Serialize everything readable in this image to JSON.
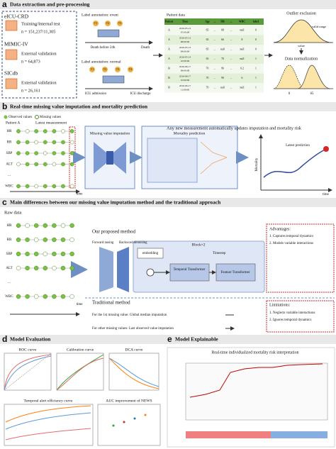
{
  "panel_a": {
    "letter": "a",
    "title": "Data extraction and pre-processing",
    "datasets": [
      {
        "name": "eICU-CRD",
        "role": "Training/Internal test",
        "n": "n = 151,237/11,305"
      },
      {
        "name": "MIMIC-IV",
        "role": "External validation",
        "n": "n = 64,873"
      },
      {
        "name": "SICdb",
        "role": "External validation",
        "n": "n = 26,161"
      }
    ],
    "event": {
      "label": "Label annotation: event",
      "times": [
        "T1",
        "T2",
        "T3"
      ],
      "start": "Death before 24h",
      "end": "Death"
    },
    "normal": {
      "label": "Label annotation: normal",
      "times": [
        "T1",
        "T2",
        "T3",
        "T4"
      ],
      "start": "ICU admission",
      "end": "ICU discharge"
    },
    "table": {
      "title": "Patient data",
      "headers": [
        "Patient",
        "Time",
        "Age",
        "...",
        "DB",
        "...",
        "WBC",
        "label"
      ],
      "rows": [
        [
          "A",
          "2016-05-13",
          "07:00:00",
          "65",
          "...",
          "68",
          "...",
          "null",
          "0"
        ],
        [
          "A",
          "2016-05-13",
          "08:00:00",
          "65",
          "...",
          "66",
          "...",
          "8",
          "0"
        ],
        [
          "A",
          "2016-05-13",
          "09:00:00",
          "65",
          "...",
          "null",
          "...",
          "null",
          "0"
        ],
        [
          "A",
          "2016-05-14",
          "10:00:00",
          "65",
          "...",
          "70",
          "...",
          "null",
          "1"
        ],
        [
          "B",
          "2016-06-17",
          "09:00:00",
          "70",
          "...",
          "96",
          "...",
          "6.2",
          "1"
        ],
        [
          "B",
          "2016-06-17",
          "10:00:00",
          "70",
          "...",
          "90",
          "...",
          "6",
          "1"
        ],
        [
          "B",
          "2016-06-17",
          "11:00:00",
          "70",
          "...",
          "null",
          "...",
          "null",
          "1"
        ]
      ]
    },
    "outlier": {
      "title": "Outlier exclusion",
      "range": "valid range",
      "axis": "value"
    },
    "normalization": {
      "title": "Data normalization",
      "ticks": [
        "0",
        "65"
      ]
    }
  },
  "panel_b": {
    "letter": "b",
    "title": "Real-time missing value imputation and mortality prediction",
    "legend": [
      "Observed values",
      "Missing values"
    ],
    "patient": "Patient  A",
    "latest": "Latest measurement",
    "variables": [
      "HR",
      "RR",
      "SBP",
      "ALT",
      "...",
      "WBC"
    ],
    "time": "time",
    "note": "Any new measurement automatically updates imputation and mortality risk",
    "imputation": "Missing value imputation",
    "prediction": "Mortality prediction",
    "plot": {
      "point": "Latest prediction",
      "y_label": "Mortality",
      "x_label": "time"
    }
  },
  "panel_c": {
    "letter": "c",
    "title": "Main differences between our missing value imputation method and the traditional approach",
    "raw": "Raw data",
    "variables": [
      "HR",
      "RR",
      "SBP",
      "ALT",
      "...",
      "WBC"
    ],
    "time": "time",
    "proposed": {
      "title": "Our proposed method",
      "forward": "Forward nosing",
      "backward": "Backword denoising",
      "block": "Block×2",
      "embedding": "embedding",
      "timestep": "Timestep",
      "temporal": "Temporal Transformer",
      "feature": "Feature Transformer"
    },
    "advantages": {
      "title": "Advantages:",
      "items": [
        "1. Captures temporal dynamics",
        "2. Models variable interactions"
      ]
    },
    "traditional": {
      "title": "Traditional method",
      "first": "For the 1st missing value: Global median imputation",
      "other": "For other missing values: Last observed value imputation"
    },
    "limitations": {
      "title": "Limitations:",
      "items": [
        "1. Neglects variable interactions",
        "2. Ignores temporal dynamics"
      ]
    }
  },
  "panel_d": {
    "letter": "d",
    "title": "Model Evaluation",
    "plots": [
      "ROC curve",
      "Calibration curve",
      "DCA curve",
      "Temporal alert efficiency curve",
      "AUC improvement of NEWS"
    ]
  },
  "panel_e": {
    "letter": "e",
    "title": "Model Explainable",
    "plot": "Real-time individualized mortality risk interpretation"
  }
}
